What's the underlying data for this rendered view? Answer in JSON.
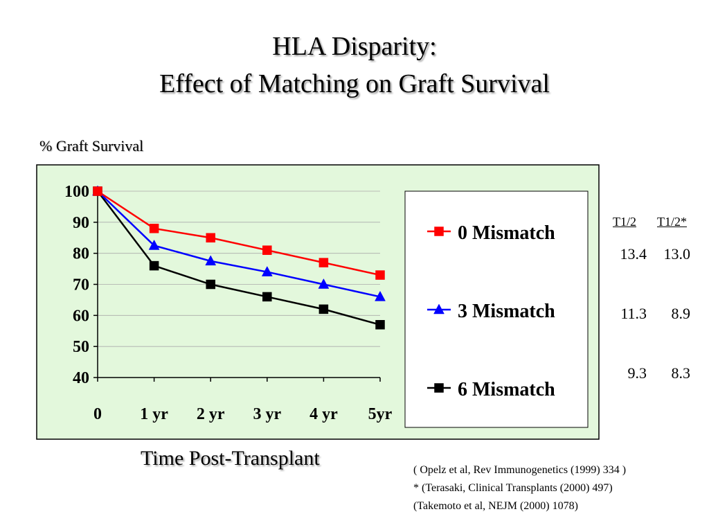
{
  "slide": {
    "title_line_1": "HLA Disparity:",
    "title_line_2": "Effect of Matching on Graft Survival",
    "y_axis_label": "% Graft Survival",
    "x_axis_label": "Time Post-Transplant"
  },
  "half_life_table": {
    "headers": [
      "T1/2",
      "T1/2*"
    ],
    "rows": [
      [
        "13.4",
        "13.0"
      ],
      [
        "11.3",
        "8.9"
      ],
      [
        "9.3",
        "8.3"
      ]
    ]
  },
  "references": [
    "( Opelz et al, Rev Immunogenetics  (1999) 334 )",
    "* (Terasaki, Clinical Transplants (2000)  497)",
    "(Takemoto et al, NEJM (2000) 1078)"
  ],
  "colors": {
    "plot_background": "#e3f8dc",
    "series_0": "#ff0000",
    "series_3": "#0000ff",
    "series_6": "#000000"
  },
  "chart_data": {
    "type": "line",
    "title": "HLA Disparity: Effect of Matching on Graft Survival",
    "xlabel": "Time Post-Transplant",
    "ylabel": "% Graft Survival",
    "categories": [
      "0",
      "1 yr",
      "2 yr",
      "3 yr",
      "4 yr",
      "5yr"
    ],
    "ylim": [
      40,
      100
    ],
    "yticks": [
      "100",
      "90",
      "80",
      "70",
      "60",
      "50",
      "40"
    ],
    "grid": true,
    "legend_position": "right",
    "series": [
      {
        "name": "0 Mismatch",
        "color": "#ff0000",
        "marker": "square",
        "values": [
          100,
          88,
          85,
          81,
          77,
          73
        ]
      },
      {
        "name": "3 Mismatch",
        "color": "#0000ff",
        "marker": "triangle",
        "values": [
          100,
          82.5,
          77.5,
          74,
          70,
          66
        ]
      },
      {
        "name": "6 Mismatch",
        "color": "#000000",
        "marker": "square",
        "values": [
          100,
          76,
          70,
          66,
          62,
          57
        ]
      }
    ]
  }
}
